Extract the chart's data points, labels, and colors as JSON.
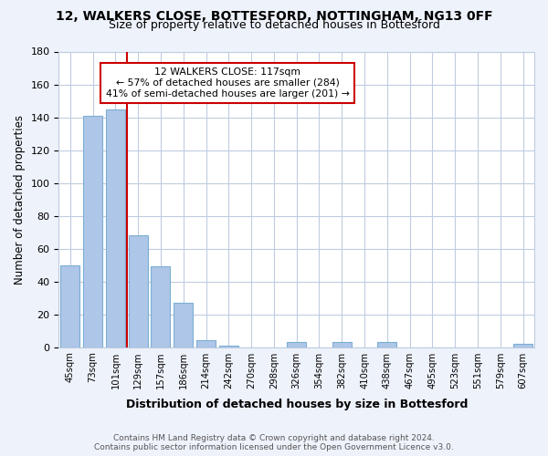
{
  "title": "12, WALKERS CLOSE, BOTTESFORD, NOTTINGHAM, NG13 0FF",
  "subtitle": "Size of property relative to detached houses in Bottesford",
  "xlabel": "Distribution of detached houses by size in Bottesford",
  "ylabel": "Number of detached properties",
  "bar_labels": [
    "45sqm",
    "73sqm",
    "101sqm",
    "129sqm",
    "157sqm",
    "186sqm",
    "214sqm",
    "242sqm",
    "270sqm",
    "298sqm",
    "326sqm",
    "354sqm",
    "382sqm",
    "410sqm",
    "438sqm",
    "467sqm",
    "495sqm",
    "523sqm",
    "551sqm",
    "579sqm",
    "607sqm"
  ],
  "bar_values": [
    50,
    141,
    145,
    68,
    49,
    27,
    4,
    1,
    0,
    0,
    3,
    0,
    3,
    0,
    3,
    0,
    0,
    0,
    0,
    0,
    2
  ],
  "bar_color": "#aec6e8",
  "bar_edge_color": "#7bafd4",
  "ylim": [
    0,
    180
  ],
  "yticks": [
    0,
    20,
    40,
    60,
    80,
    100,
    120,
    140,
    160,
    180
  ],
  "property_line_x": 2.5,
  "property_line_color": "#cc0000",
  "annotation_line1": "12 WALKERS CLOSE: 117sqm",
  "annotation_line2": "← 57% of detached houses are smaller (284)",
  "annotation_line3": "41% of semi-detached houses are larger (201) →",
  "annotation_box_color": "#ffffff",
  "annotation_box_edge": "#cc0000",
  "footer_text": "Contains HM Land Registry data © Crown copyright and database right 2024.\nContains public sector information licensed under the Open Government Licence v3.0.",
  "bg_color": "#eef2fb",
  "plot_bg_color": "#ffffff",
  "grid_color": "#c0cce0"
}
